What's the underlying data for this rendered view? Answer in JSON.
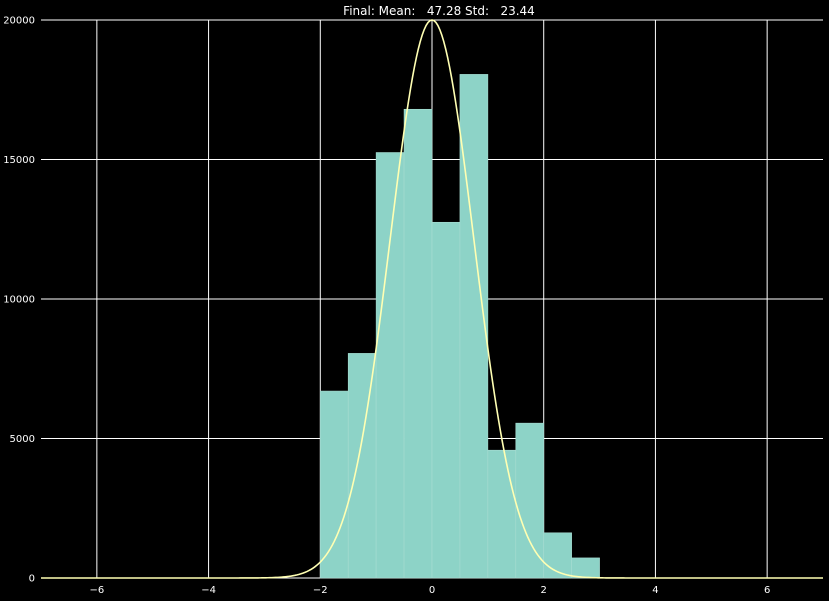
{
  "chart_data": {
    "type": "bar",
    "title": "Final: Mean:   47.28 Std:   23.44",
    "xlabel": "",
    "ylabel": "",
    "xlim": [
      -7,
      7
    ],
    "ylim": [
      0,
      20000
    ],
    "x_ticks": [
      -6,
      -4,
      -2,
      0,
      2,
      4,
      6
    ],
    "y_ticks": [
      0,
      5000,
      10000,
      15000,
      20000
    ],
    "grid": true,
    "bins": [
      {
        "x0": -2.0,
        "x1": -1.5,
        "value": 6700
      },
      {
        "x0": -1.5,
        "x1": -1.0,
        "value": 8050
      },
      {
        "x0": -1.0,
        "x1": -0.5,
        "value": 15250
      },
      {
        "x0": -0.5,
        "x1": 0.0,
        "value": 16800
      },
      {
        "x0": 0.0,
        "x1": 0.5,
        "value": 12750
      },
      {
        "x0": 0.5,
        "x1": 1.0,
        "value": 18050
      },
      {
        "x0": 1.0,
        "x1": 1.5,
        "value": 4580
      },
      {
        "x0": 1.5,
        "x1": 2.0,
        "value": 5550
      },
      {
        "x0": 2.0,
        "x1": 2.5,
        "value": 1620
      },
      {
        "x0": 2.5,
        "x1": 3.0,
        "value": 720
      }
    ],
    "curve": {
      "type": "gaussian",
      "mu": 0,
      "sigma": 0.75,
      "peak": 20000,
      "x_range": [
        -7,
        7
      ]
    },
    "colors": {
      "bars": "#8dd3c7",
      "curve": "#ffffb3",
      "grid": "#ffffff",
      "background": "#000000"
    }
  }
}
